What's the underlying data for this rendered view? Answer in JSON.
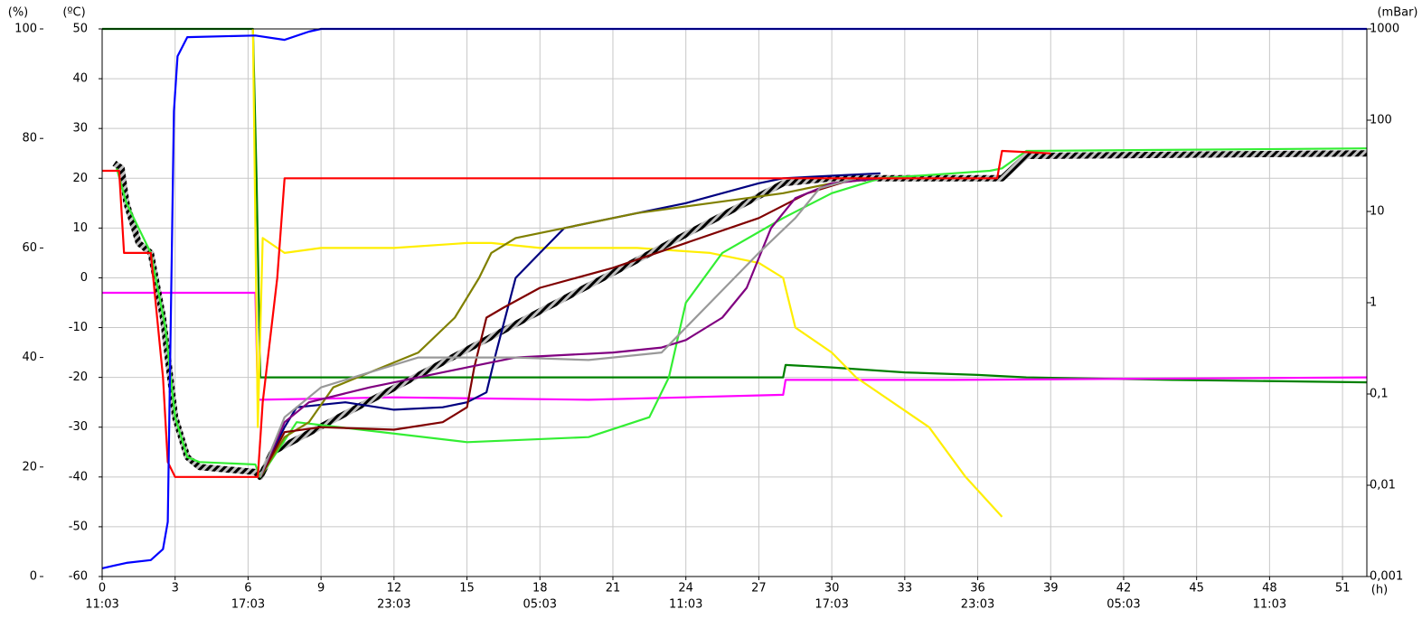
{
  "chart_data": {
    "type": "line",
    "ylabel": "(ºC)",
    "y2label": "(%)",
    "y3label": "(mBar)",
    "xlabel": "(h)",
    "xlim": [
      0,
      52
    ],
    "xticks": [
      0,
      3,
      6,
      9,
      12,
      15,
      18,
      21,
      24,
      27,
      30,
      33,
      36,
      39,
      42,
      45,
      48,
      51
    ],
    "xtick_times": [
      "11:03",
      null,
      "17:03",
      null,
      "23:03",
      null,
      "05:03",
      null,
      "11:03",
      null,
      "17:03",
      null,
      "23:03",
      null,
      "05:03",
      null,
      "11:03",
      null
    ],
    "ylim": [
      -60,
      50
    ],
    "yticks": [
      -60,
      -50,
      -40,
      -30,
      -20,
      -10,
      0,
      10,
      20,
      30,
      40,
      50
    ],
    "y2lim": [
      0,
      100
    ],
    "y2ticks": [
      0,
      20,
      40,
      60,
      80,
      100
    ],
    "y3lim": [
      0.001,
      1000
    ],
    "y3scale": "log",
    "y3ticks": [
      {
        "value": 0.001,
        "label": "0,001"
      },
      {
        "value": 0.01,
        "label": "0,01"
      },
      {
        "value": 0.1,
        "label": "0,1"
      },
      1,
      10,
      100,
      1000
    ],
    "grid": true,
    "series": [
      {
        "color": "#008000",
        "x": [
          0,
          6.2,
          6.35,
          6.5,
          28,
          28.1,
          30,
          33,
          36,
          38,
          44,
          52
        ],
        "values": [
          50,
          50,
          20,
          -20,
          -20,
          -17.5,
          -18,
          -19,
          -19.5,
          -20,
          -20.5,
          -21
        ]
      },
      {
        "color": "#ff00ff",
        "x": [
          0,
          6.3,
          6.4,
          12,
          20,
          28,
          28.1,
          35,
          52
        ],
        "values": [
          -3,
          -3,
          -24.5,
          -24,
          -24.5,
          -23.5,
          -20.5,
          -20.5,
          -20
        ]
      },
      {
        "color": "#ffee00",
        "x": [
          6.2,
          6.4,
          6.6,
          7.5,
          9,
          12,
          15,
          16,
          18,
          22,
          25,
          27,
          28,
          28.5,
          30,
          31,
          34,
          35.5,
          37
        ],
        "values": [
          50,
          -30,
          8,
          5,
          6,
          6,
          7,
          7,
          6,
          6,
          5,
          3,
          0,
          -10,
          -15,
          -20,
          -30,
          -40,
          -48
        ]
      },
      {
        "color": "#808080",
        "style": "hatched",
        "x": [
          0.5,
          0.8,
          1,
          1.5,
          2,
          2.5,
          3,
          3.5,
          4,
          6.3,
          6.5,
          7,
          28,
          30,
          37,
          38,
          52
        ],
        "values": [
          23,
          22,
          15,
          7,
          5,
          -8,
          -28,
          -36,
          -38,
          -39,
          -40,
          -35,
          19,
          20,
          20,
          24.5,
          25
        ]
      },
      {
        "color": "#33ee33",
        "x": [
          0.6,
          1,
          2,
          2.6,
          3,
          3.5,
          4,
          6.3,
          6.5,
          8,
          15,
          20,
          22.5,
          23.3,
          24,
          25.5,
          28,
          30,
          32,
          35,
          36.5,
          37,
          38,
          52
        ],
        "values": [
          22,
          15,
          5,
          -10,
          -28,
          -36,
          -37,
          -37.5,
          -40,
          -29,
          -33,
          -32,
          -28,
          -20,
          -5,
          5,
          12,
          17,
          20,
          21,
          21.5,
          22,
          25.5,
          26
        ]
      },
      {
        "color": "#000080",
        "x": [
          6.5,
          7.5,
          8,
          10,
          12,
          14,
          15,
          15.8,
          16.2,
          17,
          18,
          19,
          21,
          24,
          27,
          28,
          30,
          32
        ],
        "values": [
          -40,
          -30,
          -26,
          -25,
          -26.5,
          -26,
          -25,
          -23,
          -15,
          0,
          5,
          10,
          12,
          15,
          19,
          20,
          20.5,
          21
        ]
      },
      {
        "color": "#808000",
        "x": [
          6.5,
          7.5,
          8.5,
          9.5,
          11,
          13,
          14.5,
          15.5,
          16,
          17,
          19,
          22,
          25,
          28,
          30,
          32
        ],
        "values": [
          -40,
          -32,
          -29,
          -22,
          -19,
          -15,
          -8,
          0,
          5,
          8,
          10,
          13,
          15,
          17,
          19,
          20
        ]
      },
      {
        "color": "#800000",
        "x": [
          6.5,
          7.5,
          9,
          12,
          14,
          15,
          15.3,
          15.8,
          16.5,
          18,
          21,
          24,
          27,
          29,
          31
        ],
        "values": [
          -40,
          -31,
          -30,
          -30.5,
          -29,
          -26,
          -18,
          -8,
          -6,
          -2,
          2,
          7,
          12,
          17,
          20
        ]
      },
      {
        "color": "#800080",
        "x": [
          6.5,
          7.5,
          8.5,
          11,
          14,
          15,
          17,
          21,
          23,
          24,
          25.5,
          26.5,
          27.5,
          28.5,
          30,
          32
        ],
        "values": [
          -40,
          -29,
          -25,
          -22,
          -19,
          -18,
          -16,
          -15,
          -14,
          -12.5,
          -8,
          -2,
          10,
          16,
          19,
          20
        ]
      },
      {
        "color": "#999999",
        "x": [
          6.5,
          7.5,
          9,
          11,
          13,
          17,
          20,
          23,
          24,
          25,
          27,
          28.5,
          29.5,
          31
        ],
        "values": [
          -40,
          -28,
          -22,
          -19,
          -16,
          -16,
          -16.5,
          -15,
          -10,
          -5,
          5,
          12,
          18,
          20
        ]
      },
      {
        "color": "#ff0000",
        "x": [
          0,
          0.7,
          0.9,
          2,
          2.5,
          2.7,
          3,
          6.4,
          6.6,
          7.2,
          7.5,
          28,
          36.8,
          37,
          39
        ],
        "values": [
          21.5,
          21.5,
          5,
          5,
          -20,
          -37,
          -40,
          -40,
          -25,
          0,
          20,
          20,
          20,
          25.5,
          25
        ]
      },
      {
        "color": "#0000ff",
        "axis": "y2",
        "x": [
          0,
          1,
          2,
          2.5,
          2.7,
          2.8,
          2.95,
          3.1,
          3.5,
          6.3,
          7.5,
          8.5,
          9,
          52
        ],
        "values": [
          1.5,
          2.5,
          3,
          5,
          10,
          40,
          85,
          95,
          98.5,
          98.8,
          98,
          99.5,
          100,
          100
        ]
      }
    ]
  }
}
